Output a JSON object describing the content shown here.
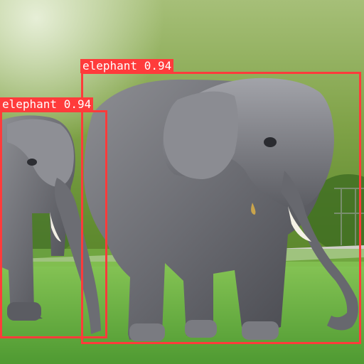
{
  "image": {
    "subject": "elephant",
    "colors": {
      "box": "#ff3b3b",
      "label_text": "#ffffff"
    }
  },
  "detections": [
    {
      "label": "elephant 0.94",
      "class": "elephant",
      "confidence": 0.94
    },
    {
      "label": "elephant 0.94",
      "class": "elephant",
      "confidence": 0.94
    }
  ]
}
